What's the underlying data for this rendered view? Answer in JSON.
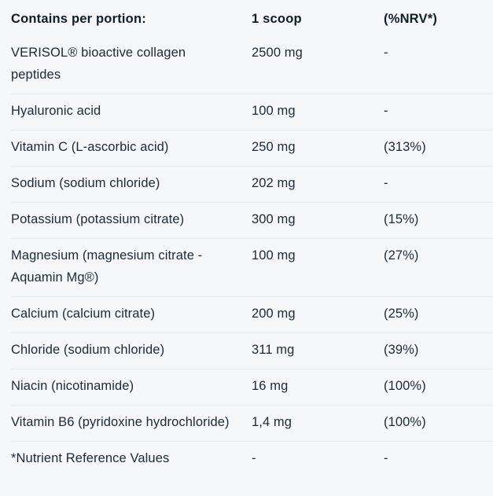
{
  "colors": {
    "background": "#f5f7fa",
    "text": "#1b2a36",
    "heading": "#101d28",
    "divider": "#e2e8ee"
  },
  "table": {
    "headers": [
      {
        "label": "Contains per portion:"
      },
      {
        "label": "1 scoop"
      },
      {
        "label": "(%NRV*)"
      }
    ],
    "rows": [
      {
        "name": "VERISOL® bioactive collagen peptides",
        "amount": "2500 mg",
        "nrv": "-"
      },
      {
        "name": "Hyaluronic acid",
        "amount": "100 mg",
        "nrv": "-"
      },
      {
        "name": "Vitamin C (L-ascorbic acid)",
        "amount": "250 mg",
        "nrv": "(313%)"
      },
      {
        "name": "Sodium (sodium chloride)",
        "amount": "202 mg",
        "nrv": "-"
      },
      {
        "name": "Potassium (potassium citrate)",
        "amount": "300 mg",
        "nrv": "(15%)"
      },
      {
        "name": "Magnesium (magnesium citrate - Aquamin Mg®)",
        "amount": "100 mg",
        "nrv": "(27%)"
      },
      {
        "name": "Calcium (calcium citrate)",
        "amount": "200 mg",
        "nrv": "(25%)"
      },
      {
        "name": "Chloride (sodium chloride)",
        "amount": "311 mg",
        "nrv": "(39%)"
      },
      {
        "name": "Niacin (nicotinamide)",
        "amount": "16 mg",
        "nrv": "(100%)"
      },
      {
        "name": "Vitamin B6 (pyridoxine hydrochloride)",
        "amount": "1,4 mg",
        "nrv": "(100%)"
      },
      {
        "name": "*Nutrient Reference Values",
        "amount": "-",
        "nrv": "-"
      }
    ]
  }
}
